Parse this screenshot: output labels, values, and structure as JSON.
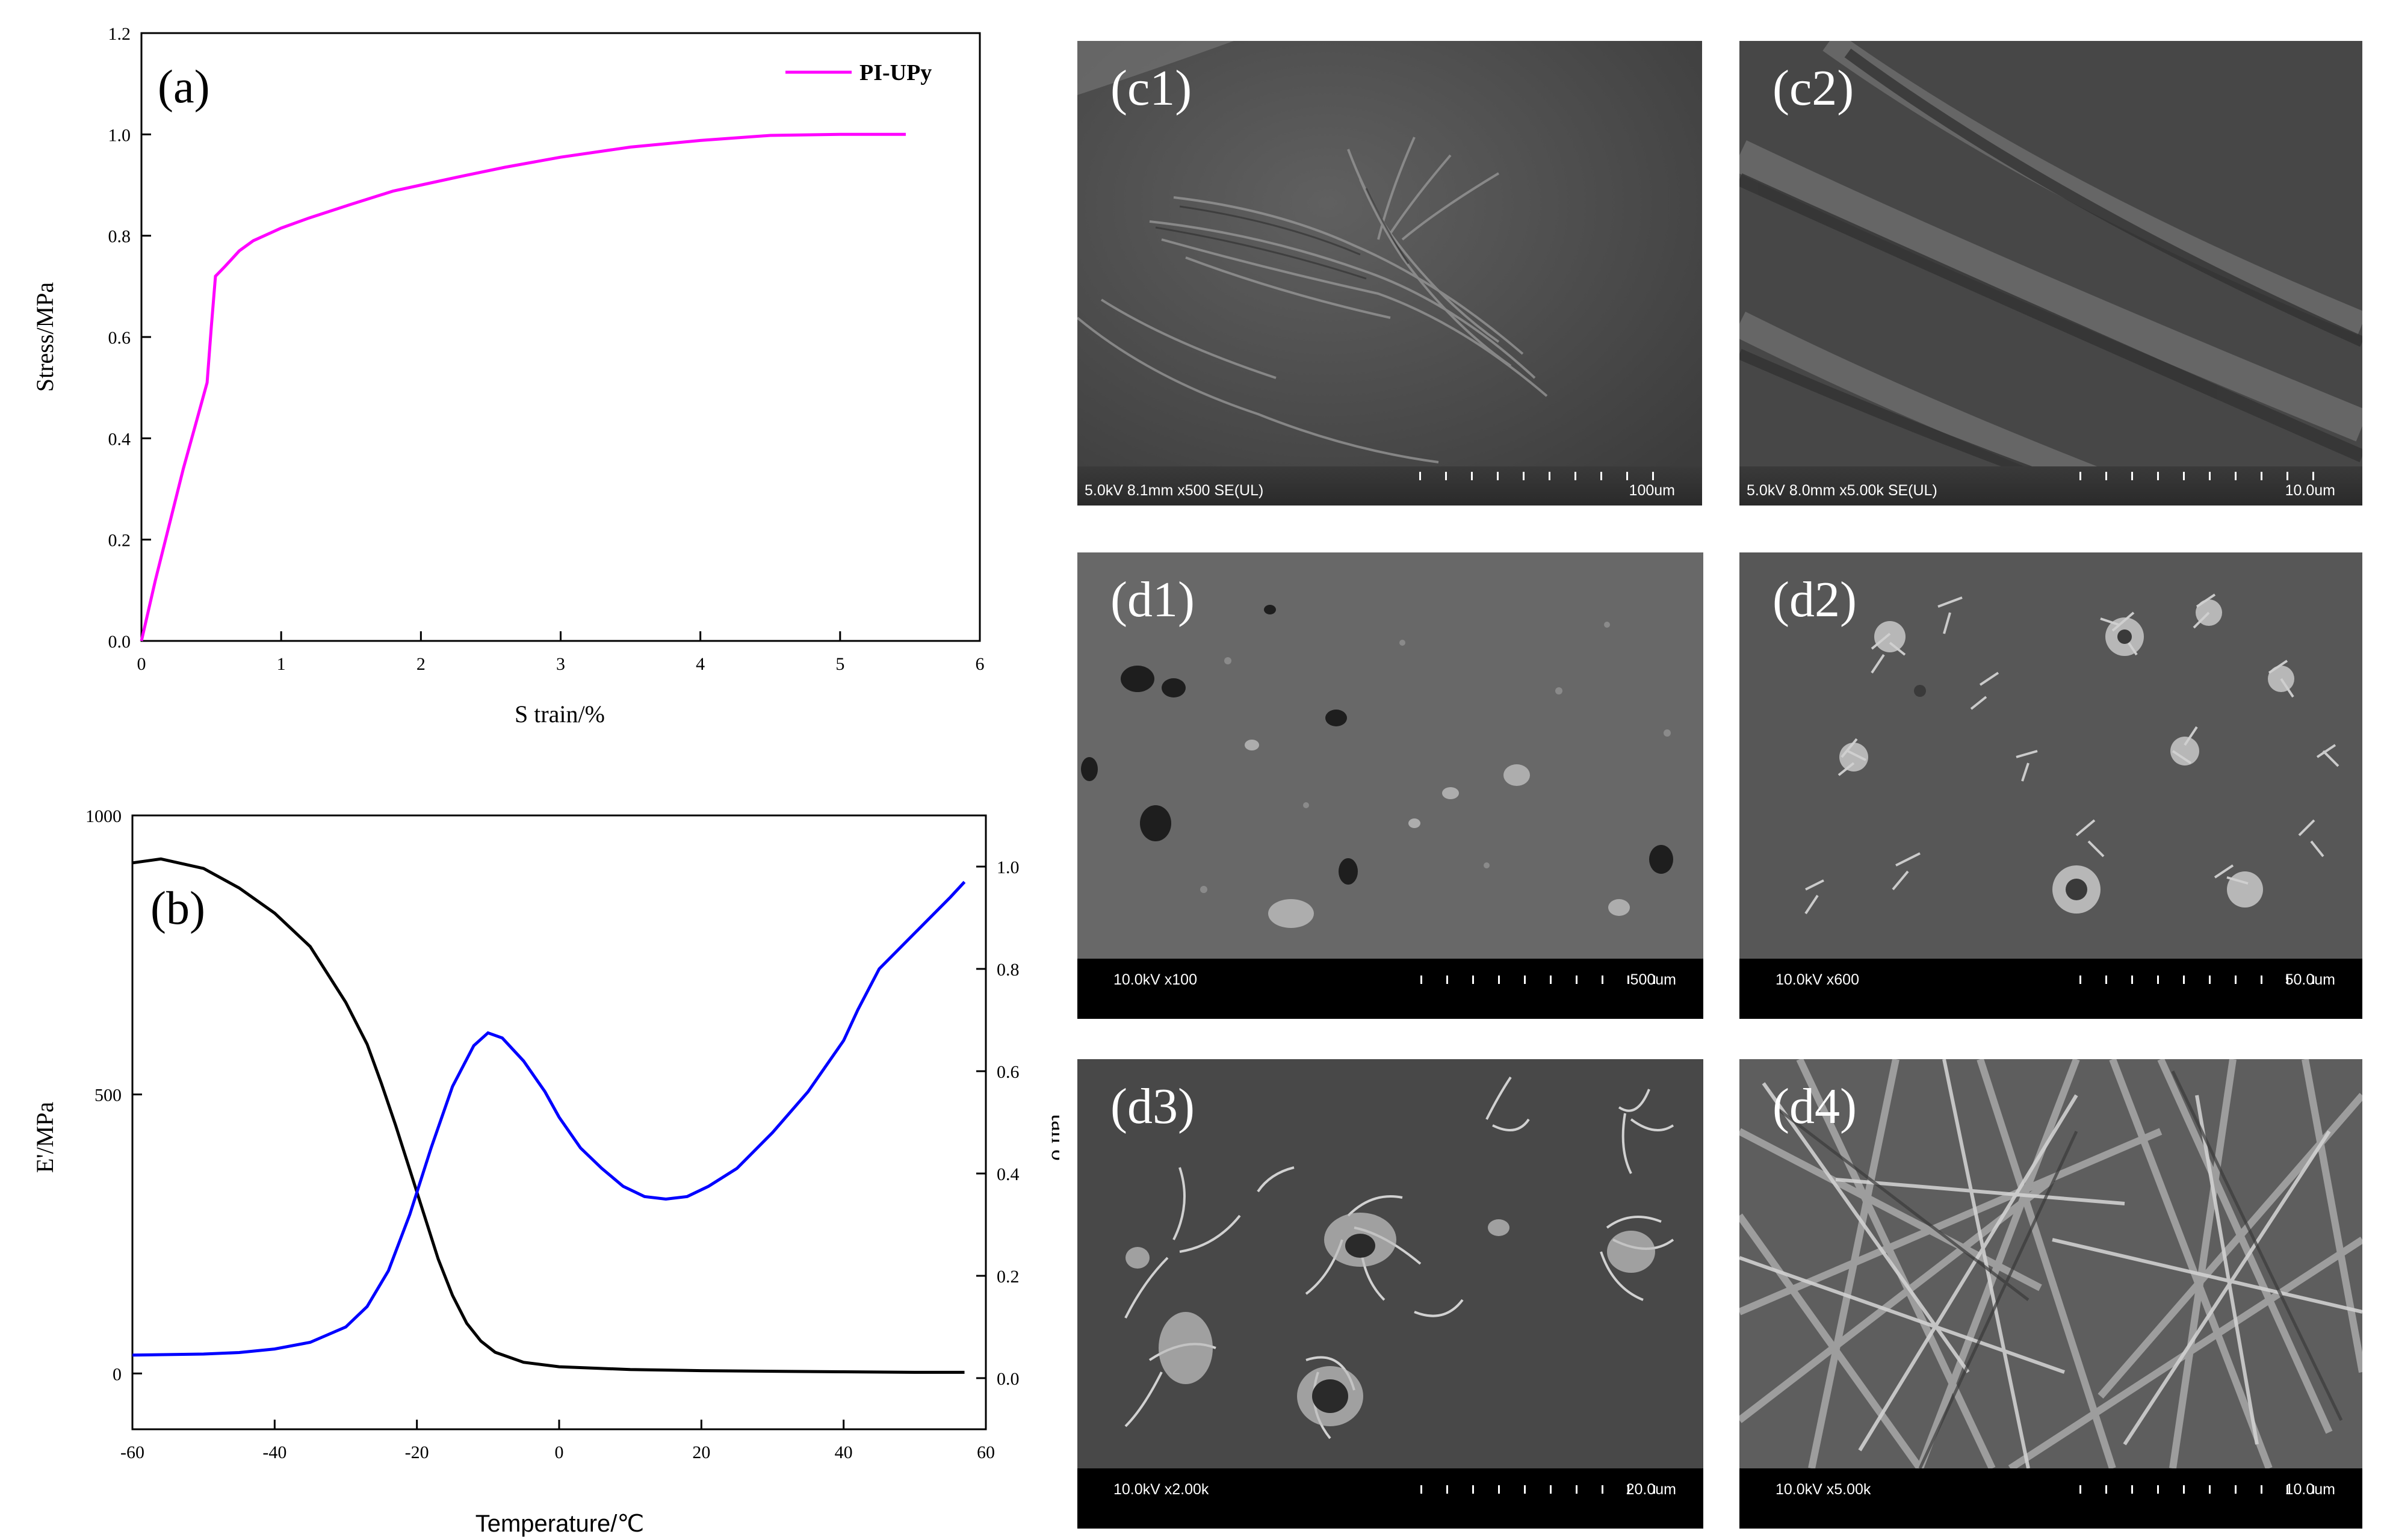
{
  "panel_a": {
    "tag": "(a)",
    "chart_data": {
      "type": "line",
      "xlabel": "S train/%",
      "ylabel": "Stress/MPa",
      "xlim": [
        0,
        6
      ],
      "ylim": [
        0,
        1.2
      ],
      "xticks": [
        "0",
        "1",
        "2",
        "3",
        "4",
        "5",
        "6"
      ],
      "yticks": [
        "0.0",
        "0.2",
        "0.4",
        "0.6",
        "0.8",
        "1.0",
        "1.2"
      ],
      "legend_position": "top-right",
      "series": [
        {
          "name": "PI-UPy",
          "color": "#ff00ff",
          "x": [
            0,
            0.1,
            0.2,
            0.3,
            0.4,
            0.47,
            0.5,
            0.53,
            0.6,
            0.7,
            0.8,
            1.0,
            1.2,
            1.5,
            1.8,
            2.0,
            2.3,
            2.6,
            3.0,
            3.5,
            4.0,
            4.5,
            5.0,
            5.47
          ],
          "y": [
            0,
            0.12,
            0.23,
            0.34,
            0.44,
            0.51,
            0.62,
            0.72,
            0.74,
            0.77,
            0.79,
            0.815,
            0.835,
            0.862,
            0.888,
            0.9,
            0.918,
            0.935,
            0.955,
            0.975,
            0.988,
            0.998,
            1.0,
            1.0
          ]
        }
      ]
    }
  },
  "panel_b": {
    "tag": "(b)",
    "chart_data": {
      "type": "line",
      "xlabel": "Temperature/℃",
      "ylabel": "E'/MPa",
      "y2label": "tan δ",
      "xlim": [
        -60,
        60
      ],
      "ylim": [
        -100,
        1000
      ],
      "y2lim": [
        -0.1,
        1.1
      ],
      "xticks": [
        "-60",
        "-40",
        "-20",
        "0",
        "20",
        "40",
        "60"
      ],
      "yticks": [
        "0",
        "500",
        "1000"
      ],
      "y2ticks": [
        "0.0",
        "0.2",
        "0.4",
        "0.6",
        "0.8",
        "1.0"
      ],
      "series": [
        {
          "name": "E'",
          "color": "#000000",
          "axis": "left",
          "x": [
            -60,
            -56,
            -50,
            -45,
            -40,
            -35,
            -30,
            -27,
            -25,
            -23,
            -21,
            -19,
            -17,
            -15,
            -13,
            -11,
            -9,
            -5,
            0,
            10,
            20,
            30,
            40,
            50,
            57
          ],
          "y": [
            915,
            922,
            905,
            870,
            825,
            765,
            665,
            590,
            520,
            445,
            365,
            285,
            205,
            140,
            90,
            58,
            38,
            20,
            12,
            7,
            5,
            4,
            3,
            2,
            2
          ]
        },
        {
          "name": "tan δ",
          "color": "#0000ff",
          "axis": "right",
          "x": [
            -60,
            -50,
            -45,
            -40,
            -35,
            -30,
            -27,
            -24,
            -21,
            -18,
            -15,
            -12,
            -10,
            -8,
            -5,
            -2,
            0,
            3,
            6,
            9,
            12,
            15,
            18,
            21,
            25,
            30,
            35,
            40,
            42,
            45,
            50,
            55,
            57
          ],
          "y": [
            0.045,
            0.047,
            0.05,
            0.057,
            0.07,
            0.1,
            0.14,
            0.21,
            0.32,
            0.45,
            0.57,
            0.65,
            0.675,
            0.665,
            0.62,
            0.56,
            0.51,
            0.45,
            0.41,
            0.375,
            0.355,
            0.35,
            0.355,
            0.375,
            0.41,
            0.48,
            0.56,
            0.66,
            0.72,
            0.8,
            0.87,
            0.94,
            0.97
          ]
        }
      ]
    }
  },
  "sem_panels": [
    {
      "tag": "(c1)",
      "info": "5.0kV 8.1mm x500 SE(UL)",
      "scale": "100um",
      "style": "c"
    },
    {
      "tag": "(c2)",
      "info": "5.0kV 8.0mm x5.00k SE(UL)",
      "scale": "10.0um",
      "style": "c"
    },
    {
      "tag": "(d1)",
      "info": "10.0kV x100",
      "scale": "500um",
      "style": "d"
    },
    {
      "tag": "(d2)",
      "info": "10.0kV x600",
      "scale": "50.0um",
      "style": "d"
    },
    {
      "tag": "(d3)",
      "info": "10.0kV x2.00k",
      "scale": "20.0um",
      "style": "d"
    },
    {
      "tag": "(d4)",
      "info": "10.0kV x5.00k",
      "scale": "10.0um",
      "style": "d"
    }
  ]
}
